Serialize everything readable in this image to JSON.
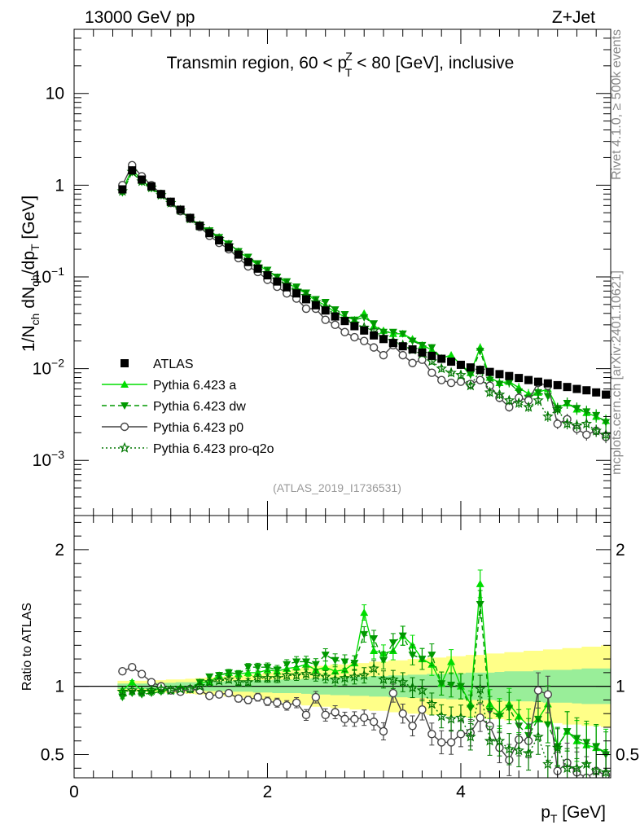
{
  "header": {
    "energy_label": "13000 GeV pp",
    "process_label": "Z+Jet",
    "side_label_top": "Rivet 4.1.0, ≥ 500k events",
    "side_label_bottom": "mcplots.cern.ch [arXiv:2401.10621]"
  },
  "chart_data": [
    {
      "type": "scatter",
      "panel": "main",
      "title_parts": {
        "prefix": "Transmin region, 60 < p",
        "sup": "Z",
        "sub": "T",
        "suffix": " < 80 [GeV], inclusive"
      },
      "watermark": "(ATLAS_2019_I1736531)",
      "ylabel": "1/N_ch dN_ch/dp_T [GeV]",
      "yscale": "log",
      "ylim": [
        0.00025,
        50
      ],
      "xlim": [
        0,
        5.55
      ],
      "ytick_labels": {
        "10": "10",
        "1": "1",
        "0.1": "10^-1",
        "0.01": "10^-2",
        "0.001": "10^-3"
      },
      "x": [
        0.5,
        0.6,
        0.7,
        0.8,
        0.9,
        1.0,
        1.1,
        1.2,
        1.3,
        1.4,
        1.5,
        1.6,
        1.7,
        1.8,
        1.9,
        2.0,
        2.1,
        2.2,
        2.3,
        2.4,
        2.5,
        2.6,
        2.7,
        2.8,
        2.9,
        3.0,
        3.1,
        3.2,
        3.3,
        3.4,
        3.5,
        3.6,
        3.7,
        3.8,
        3.9,
        4.0,
        4.1,
        4.2,
        4.3,
        4.4,
        4.5,
        4.6,
        4.7,
        4.8,
        4.9,
        5.0,
        5.1,
        5.2,
        5.3,
        5.4,
        5.5
      ],
      "series": [
        {
          "name": "ATLAS",
          "marker": "square",
          "color": "#000000",
          "values": [
            0.9,
            1.45,
            1.15,
            0.97,
            0.8,
            0.66,
            0.54,
            0.44,
            0.36,
            0.3,
            0.25,
            0.21,
            0.175,
            0.145,
            0.123,
            0.104,
            0.089,
            0.077,
            0.066,
            0.057,
            0.049,
            0.043,
            0.037,
            0.033,
            0.029,
            0.026,
            0.023,
            0.021,
            0.019,
            0.0175,
            0.0162,
            0.015,
            0.0138,
            0.0128,
            0.0119,
            0.011,
            0.0103,
            0.0097,
            0.0092,
            0.0087,
            0.0083,
            0.0079,
            0.0075,
            0.0072,
            0.0069,
            0.0066,
            0.0063,
            0.006,
            0.0058,
            0.0055,
            0.0052
          ]
        },
        {
          "name": "Pythia 6.423 a",
          "marker": "triangle-up",
          "color": "#00dd00",
          "dash": "",
          "values": [
            0.88,
            1.5,
            1.12,
            0.94,
            0.78,
            0.64,
            0.53,
            0.43,
            0.37,
            0.31,
            0.27,
            0.23,
            0.19,
            0.16,
            0.135,
            0.117,
            0.099,
            0.087,
            0.075,
            0.066,
            0.055,
            0.049,
            0.041,
            0.037,
            0.034,
            0.04,
            0.029,
            0.026,
            0.024,
            0.024,
            0.021,
            0.018,
            0.016,
            0.013,
            0.014,
            0.011,
            0.009,
            0.017,
            0.008,
            0.007,
            0.0072,
            0.0062,
            0.0053,
            0.0055,
            0.006,
            0.0037,
            0.0042,
            0.0036,
            0.0033,
            0.003,
            0.0027
          ]
        },
        {
          "name": "Pythia 6.423 dw",
          "marker": "triangle-down",
          "color": "#009900",
          "dash": "6,4",
          "values": [
            0.83,
            1.38,
            1.08,
            0.92,
            0.77,
            0.65,
            0.53,
            0.43,
            0.37,
            0.32,
            0.27,
            0.23,
            0.19,
            0.165,
            0.14,
            0.119,
            0.1,
            0.089,
            0.078,
            0.067,
            0.057,
            0.053,
            0.044,
            0.039,
            0.034,
            0.036,
            0.031,
            0.025,
            0.025,
            0.024,
            0.02,
            0.018,
            0.017,
            0.013,
            0.012,
            0.011,
            0.0086,
            0.0155,
            0.0075,
            0.0068,
            0.007,
            0.0056,
            0.0048,
            0.0055,
            0.005,
            0.0037,
            0.0042,
            0.0037,
            0.0034,
            0.0031,
            0.0026
          ]
        },
        {
          "name": "Pythia 6.423 p0",
          "marker": "circle-open",
          "color": "#444444",
          "dash": "",
          "values": [
            1.0,
            1.65,
            1.25,
            1.0,
            0.8,
            0.64,
            0.52,
            0.43,
            0.35,
            0.28,
            0.235,
            0.2,
            0.16,
            0.13,
            0.113,
            0.093,
            0.078,
            0.066,
            0.058,
            0.045,
            0.045,
            0.034,
            0.03,
            0.025,
            0.022,
            0.02,
            0.017,
            0.014,
            0.018,
            0.014,
            0.0115,
            0.0125,
            0.009,
            0.0075,
            0.007,
            0.0072,
            0.0068,
            0.0075,
            0.0065,
            0.0048,
            0.0038,
            0.0048,
            0.0045,
            0.007,
            0.0065,
            0.0025,
            0.0028,
            0.0022,
            0.0019,
            0.0021,
            0.0018
          ]
        },
        {
          "name": "Pythia 6.423 pro-q2o",
          "marker": "star-open",
          "color": "#007700",
          "dash": "2,3",
          "values": [
            0.86,
            1.4,
            1.1,
            0.94,
            0.78,
            0.64,
            0.53,
            0.43,
            0.36,
            0.31,
            0.26,
            0.22,
            0.18,
            0.15,
            0.13,
            0.11,
            0.094,
            0.083,
            0.071,
            0.062,
            0.053,
            0.046,
            0.039,
            0.035,
            0.031,
            0.028,
            0.026,
            0.022,
            0.02,
            0.018,
            0.016,
            0.0145,
            0.012,
            0.01,
            0.009,
            0.0085,
            0.0065,
            0.0095,
            0.0055,
            0.0052,
            0.0045,
            0.0042,
            0.0038,
            0.0045,
            0.003,
            0.0036,
            0.0025,
            0.0024,
            0.0025,
            0.0021,
            0.0019
          ]
        }
      ],
      "legend_position": "bottom-left"
    },
    {
      "type": "scatter",
      "panel": "ratio",
      "ylabel": "Ratio to ATLAS",
      "xlabel_main": "p",
      "xlabel_sub": "T",
      "xlabel_unit": " [GeV]",
      "xlim": [
        0,
        5.55
      ],
      "ylim": [
        0.33,
        2.25
      ],
      "yticks": [
        0.5,
        1,
        2
      ],
      "ytick_labels": [
        "0.5",
        "1",
        "2"
      ],
      "xticks": [
        0,
        2,
        4
      ],
      "xtick_labels": [
        "0",
        "2",
        "4"
      ],
      "band_yellow_halfwidth": [
        0.04,
        0.04,
        0.04,
        0.045,
        0.045,
        0.05,
        0.05,
        0.055,
        0.06,
        0.065,
        0.07,
        0.075,
        0.08,
        0.085,
        0.09,
        0.1,
        0.11,
        0.12,
        0.13,
        0.14,
        0.15,
        0.15,
        0.16,
        0.16,
        0.17,
        0.17,
        0.18,
        0.18,
        0.19,
        0.19,
        0.2,
        0.2,
        0.21,
        0.21,
        0.22,
        0.22,
        0.23,
        0.23,
        0.24,
        0.24,
        0.25,
        0.25,
        0.26,
        0.26,
        0.27,
        0.27,
        0.28,
        0.28,
        0.29,
        0.29,
        0.3
      ],
      "band_green_halfwidth": [
        0.02,
        0.02,
        0.02,
        0.02,
        0.025,
        0.025,
        0.03,
        0.03,
        0.03,
        0.035,
        0.035,
        0.04,
        0.04,
        0.04,
        0.045,
        0.045,
        0.05,
        0.05,
        0.05,
        0.055,
        0.06,
        0.06,
        0.065,
        0.065,
        0.07,
        0.07,
        0.075,
        0.075,
        0.08,
        0.08,
        0.085,
        0.085,
        0.09,
        0.09,
        0.095,
        0.095,
        0.1,
        0.1,
        0.1,
        0.105,
        0.11,
        0.11,
        0.11,
        0.115,
        0.12,
        0.12,
        0.12,
        0.125,
        0.13,
        0.13,
        0.13
      ],
      "series": [
        {
          "name": "Pythia 6.423 a",
          "values": [
            0.97,
            1.03,
            0.97,
            0.97,
            0.98,
            0.97,
            0.98,
            0.98,
            1.03,
            1.03,
            1.08,
            1.1,
            1.09,
            1.1,
            1.1,
            1.12,
            1.11,
            1.13,
            1.14,
            1.16,
            1.12,
            1.14,
            1.11,
            1.12,
            1.17,
            1.54,
            1.26,
            1.24,
            1.26,
            1.37,
            1.3,
            1.2,
            1.16,
            1.02,
            1.18,
            1.0,
            0.87,
            1.75,
            0.87,
            0.8,
            0.87,
            0.78,
            0.71,
            0.76,
            0.87,
            0.56,
            0.67,
            0.6,
            0.57,
            0.55,
            0.52
          ]
        },
        {
          "name": "Pythia 6.423 dw",
          "values": [
            0.92,
            0.95,
            0.94,
            0.95,
            0.96,
            0.98,
            0.98,
            0.98,
            1.03,
            1.07,
            1.08,
            1.1,
            1.09,
            1.14,
            1.14,
            1.14,
            1.12,
            1.16,
            1.18,
            1.18,
            1.16,
            1.23,
            1.19,
            1.18,
            1.17,
            1.38,
            1.35,
            1.19,
            1.32,
            1.37,
            1.23,
            1.2,
            1.23,
            1.02,
            1.01,
            1.0,
            0.84,
            1.6,
            0.82,
            0.78,
            0.84,
            0.71,
            0.64,
            0.76,
            0.72,
            0.56,
            0.67,
            0.62,
            0.59,
            0.56,
            0.5
          ]
        },
        {
          "name": "Pythia 6.423 p0",
          "values": [
            1.11,
            1.14,
            1.09,
            1.03,
            1.0,
            0.97,
            0.96,
            0.98,
            0.97,
            0.93,
            0.94,
            0.95,
            0.91,
            0.9,
            0.92,
            0.89,
            0.88,
            0.86,
            0.88,
            0.79,
            0.92,
            0.79,
            0.81,
            0.76,
            0.76,
            0.77,
            0.74,
            0.67,
            0.95,
            0.8,
            0.71,
            0.83,
            0.65,
            0.59,
            0.59,
            0.65,
            0.66,
            0.77,
            0.71,
            0.55,
            0.46,
            0.61,
            0.6,
            0.97,
            0.94,
            0.38,
            0.44,
            0.37,
            0.33,
            0.38,
            0.35
          ]
        },
        {
          "name": "Pythia 6.423 pro-q2o",
          "values": [
            0.96,
            0.97,
            0.96,
            0.97,
            0.98,
            0.97,
            0.98,
            0.98,
            1.0,
            1.03,
            1.04,
            1.05,
            1.03,
            1.03,
            1.06,
            1.06,
            1.06,
            1.08,
            1.08,
            1.09,
            1.08,
            1.07,
            1.05,
            1.06,
            1.07,
            1.08,
            1.13,
            1.05,
            1.05,
            1.03,
            0.99,
            0.97,
            0.87,
            0.78,
            0.76,
            0.77,
            0.63,
            0.98,
            0.6,
            0.6,
            0.54,
            0.53,
            0.51,
            0.63,
            0.43,
            0.55,
            0.4,
            0.4,
            0.43,
            0.38,
            0.37
          ]
        }
      ]
    }
  ]
}
